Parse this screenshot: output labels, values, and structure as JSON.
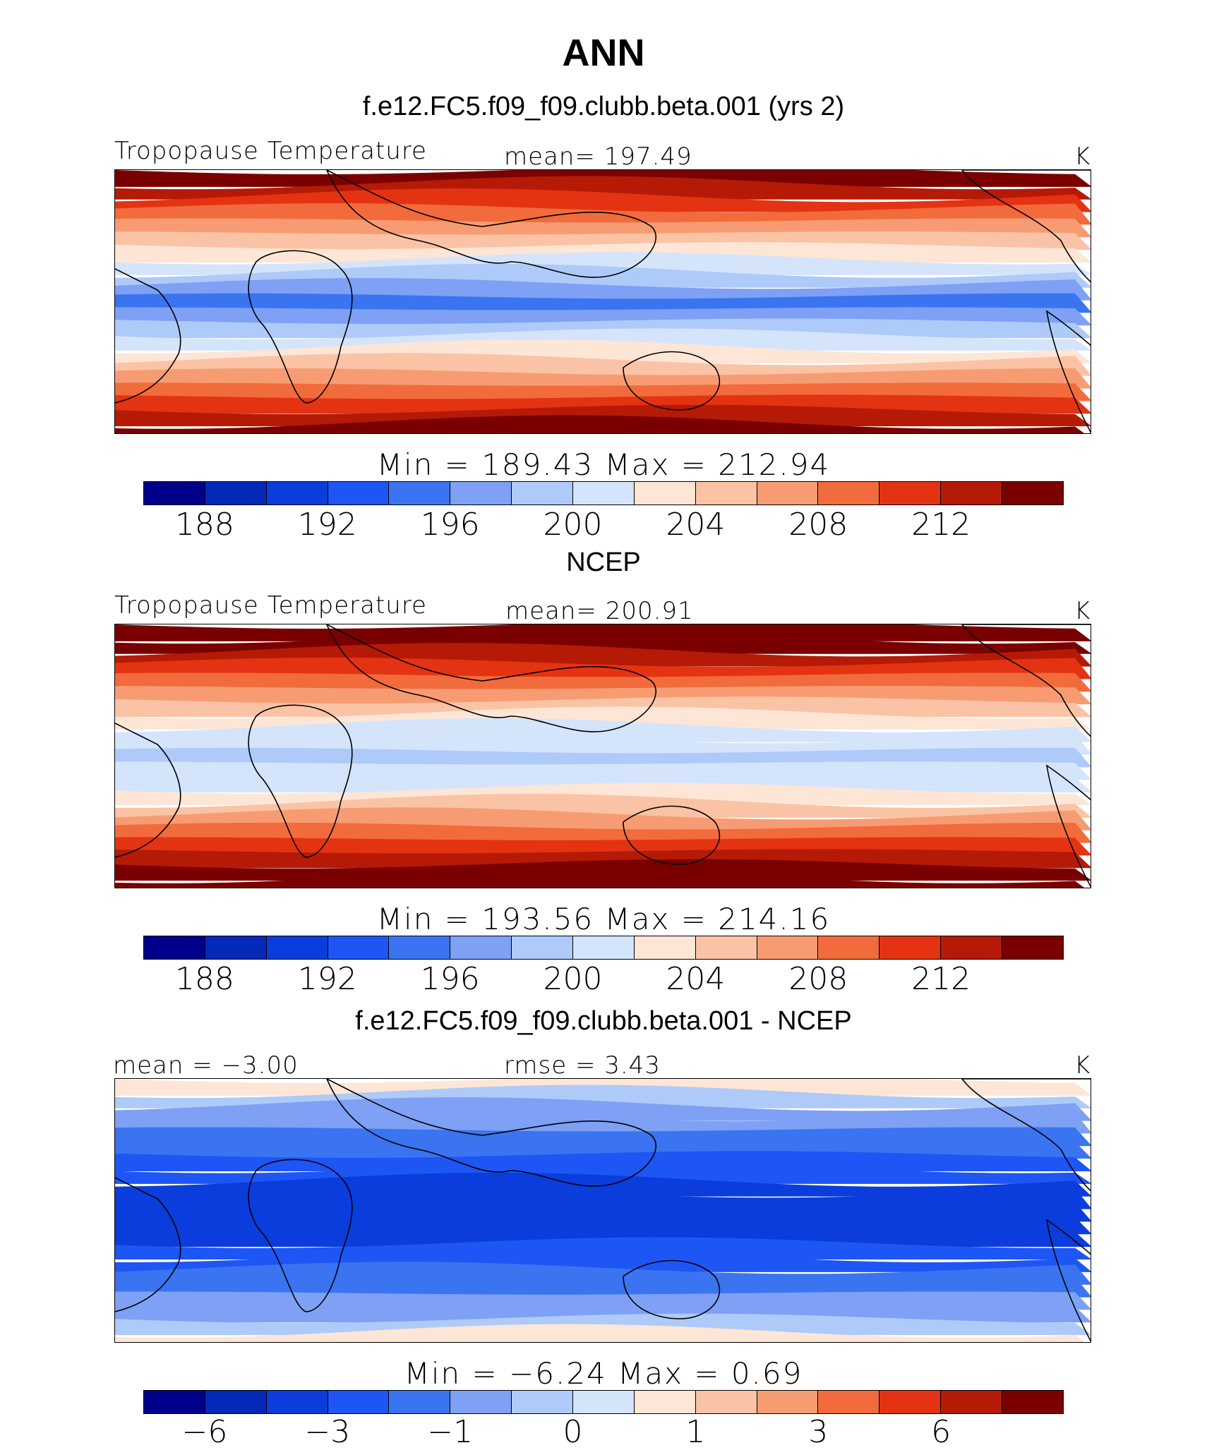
{
  "page_title": "ANN",
  "colors": [
    "#00008a",
    "#0428b8",
    "#0a3ddc",
    "#1e56f5",
    "#3a74f0",
    "#7ea0f5",
    "#aecaf8",
    "#d4e4fb",
    "#fde6d6",
    "#fbc3a5",
    "#f79c72",
    "#f26b3c",
    "#e43312",
    "#b51a06",
    "#7a0000"
  ],
  "panels": [
    {
      "title": "f.e12.FC5.f09_f09.clubb.beta.001 (yrs 2)",
      "left_label": "Tropopause Temperature",
      "center_label": "mean= 197.49",
      "units": "K",
      "stats": "Min = 189.43  Max = 212.94",
      "ticks": [
        "188",
        "192",
        "196",
        "200",
        "204",
        "208",
        "212"
      ],
      "field": {
        "base_levels": [
          14,
          13,
          12,
          11,
          10,
          9,
          8,
          7,
          6,
          5,
          4
        ],
        "warm_offset": 0
      }
    },
    {
      "title": "NCEP",
      "left_label": "Tropopause Temperature",
      "center_label": "mean= 200.91",
      "units": "K",
      "stats": "Min = 193.56  Max = 214.16",
      "ticks": [
        "188",
        "192",
        "196",
        "200",
        "204",
        "208",
        "212"
      ],
      "field": {
        "base_levels": [
          14,
          13,
          12,
          11,
          10,
          9,
          8,
          7,
          6,
          6,
          5
        ],
        "warm_offset": 1
      }
    },
    {
      "title": "f.e12.FC5.f09_f09.clubb.beta.001 - NCEP",
      "left_label": "mean =   −3.00",
      "center_label": "rmse =     3.43",
      "units": "K",
      "stats": "Min =   −6.24  Max =     0.69",
      "ticks": [
        "−6",
        "−3",
        "−1",
        "0",
        "1",
        "3",
        "6"
      ],
      "field": {
        "base_levels": [
          8,
          6,
          5,
          5,
          4,
          4,
          3,
          3,
          2,
          2,
          2
        ],
        "warm_offset": 0
      }
    }
  ]
}
